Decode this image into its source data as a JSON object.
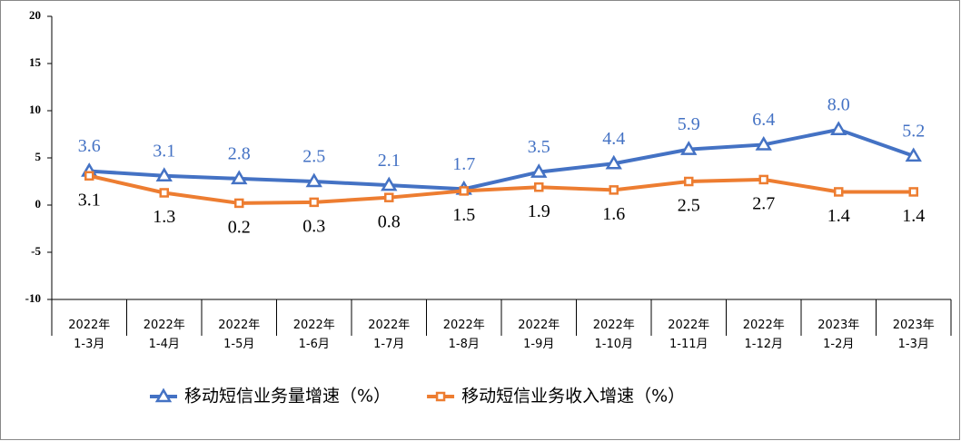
{
  "chart_data": {
    "type": "line",
    "categories": [
      "2022年\n1-3月",
      "2022年\n1-4月",
      "2022年\n1-5月",
      "2022年\n1-6月",
      "2022年\n1-7月",
      "2022年\n1-8月",
      "2022年\n1-9月",
      "2022年\n1-10月",
      "2022年\n1-11月",
      "2022年\n1-12月",
      "2023年\n1-2月",
      "2023年\n1-3月"
    ],
    "series": [
      {
        "name": "移动短信业务量增速（%）",
        "color": "#4472c4",
        "marker": "triangle",
        "values": [
          3.6,
          3.1,
          2.8,
          2.5,
          2.1,
          1.7,
          3.5,
          4.4,
          5.9,
          6.4,
          8.0,
          5.2
        ],
        "value_labels": [
          "3.6",
          "3.1",
          "2.8",
          "2.5",
          "2.1",
          "1.7",
          "3.5",
          "4.4",
          "5.9",
          "6.4",
          "8.0",
          "5.2"
        ],
        "label_color": "#4472c4",
        "label_position": "above"
      },
      {
        "name": "移动短信业务收入增速（%）",
        "color": "#ed7d31",
        "marker": "square",
        "values": [
          3.1,
          1.3,
          0.2,
          0.3,
          0.8,
          1.5,
          1.9,
          1.6,
          2.5,
          2.7,
          1.4,
          1.4
        ],
        "label_color": "#000000",
        "label_position": "below"
      }
    ],
    "ylim": [
      -10,
      20
    ],
    "yticks": [
      20,
      15,
      10,
      5,
      0,
      -5,
      -10
    ],
    "legend": "bottom"
  }
}
